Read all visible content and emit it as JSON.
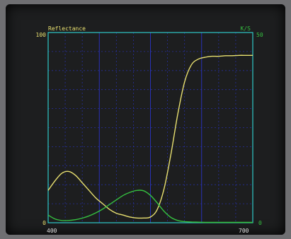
{
  "chart_data": {
    "type": "line",
    "title": "",
    "left_axis": {
      "label": "Reflectance",
      "min": 0,
      "max": 100,
      "top_label": "100",
      "bottom_label": "0"
    },
    "right_axis": {
      "label": "K/S",
      "min": 0,
      "max": 50,
      "top_label": "50",
      "bottom_label": "0"
    },
    "x_axis": {
      "min": 400,
      "max": 700,
      "start_label": "400",
      "end_label": "700"
    },
    "grid": true,
    "colors": {
      "frame": "#2ec8c8",
      "grid": "#2a35c8",
      "reflectance": "#e8e070",
      "ks": "#35c040",
      "left_text": "#e8e070",
      "right_text": "#35c040",
      "axis_text": "#e0e0e0"
    },
    "series": [
      {
        "axis": "left",
        "x": [
          400,
          410,
          420,
          430,
          440,
          450,
          460,
          470,
          480,
          490,
          500,
          510,
          520,
          530,
          540,
          550,
          560,
          570,
          580,
          590,
          600,
          610,
          620,
          630,
          640,
          650,
          660,
          670,
          680,
          690,
          700
        ],
        "values": [
          17,
          22,
          26,
          27,
          25,
          21,
          17,
          13,
          10,
          7,
          5,
          4,
          3,
          2.5,
          2.5,
          3,
          7,
          18,
          36,
          57,
          74,
          83,
          86,
          87,
          87.5,
          87.5,
          87.8,
          87.8,
          88,
          88,
          88
        ]
      },
      {
        "axis": "right",
        "x": [
          400,
          410,
          420,
          430,
          440,
          450,
          460,
          470,
          480,
          490,
          500,
          510,
          520,
          530,
          540,
          550,
          560,
          570,
          580,
          590,
          600,
          610,
          620,
          630,
          640,
          650,
          660,
          670,
          680,
          690,
          700
        ],
        "values": [
          2,
          1,
          0.6,
          0.6,
          0.8,
          1.2,
          1.8,
          2.6,
          3.6,
          4.8,
          6,
          7.2,
          8,
          8.5,
          8.4,
          7.2,
          5.2,
          3,
          1.4,
          0.6,
          0.3,
          0.2,
          0.15,
          0.1,
          0.1,
          0.1,
          0.1,
          0.1,
          0.1,
          0.1,
          0.1
        ]
      }
    ]
  }
}
